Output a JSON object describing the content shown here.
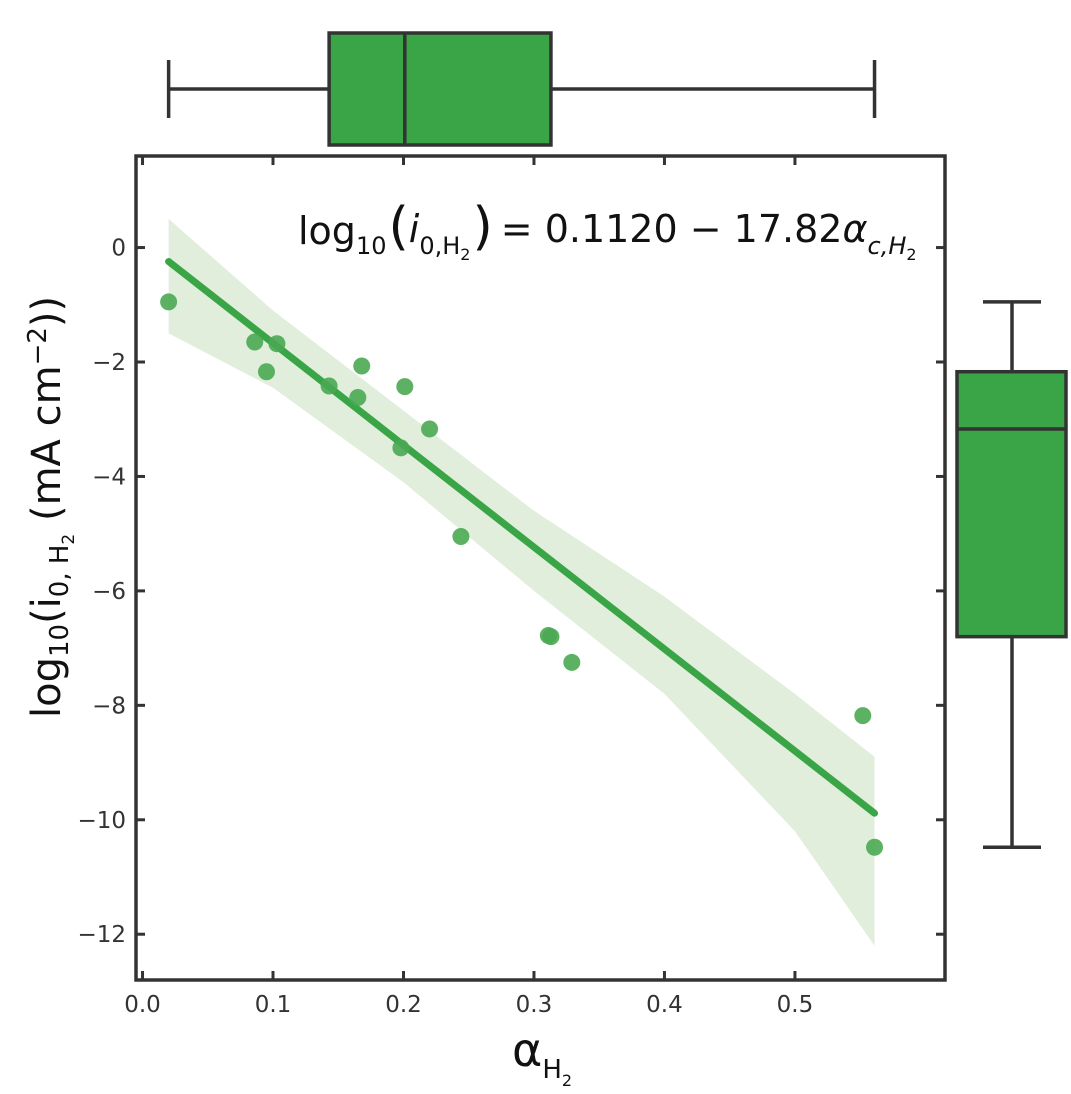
{
  "chart_data": {
    "type": "scatter",
    "equation": {
      "lhs_func": "log",
      "lhs_func_sub": "10",
      "lhs_var": "i",
      "lhs_var_sub": "0,H",
      "lhs_var_subsub": "2",
      "rhs": "= 0.1120 − 17.82",
      "rhs_var": "α",
      "rhs_var_sub": "c,H",
      "rhs_var_subsub": "2"
    },
    "xlabel": {
      "main": "α",
      "sub": "H",
      "subsub": "2"
    },
    "ylabel": {
      "pre": "log",
      "pre_sub": "10",
      "mid": "(i",
      "mid_sub": "0, H",
      "mid_subsub": "2",
      "post": " (mA cm",
      "post_sup": "−2",
      "end": "))"
    },
    "xlim": [
      -0.005,
      0.615
    ],
    "ylim": [
      -12.8,
      1.6
    ],
    "xticks": [
      0.0,
      0.1,
      0.2,
      0.3,
      0.4,
      0.5
    ],
    "xtick_labels": [
      "0.0",
      "0.1",
      "0.2",
      "0.3",
      "0.4",
      "0.5"
    ],
    "yticks": [
      0,
      -2,
      -4,
      -6,
      -8,
      -10,
      -12
    ],
    "ytick_labels": [
      "0",
      "−2",
      "−4",
      "−6",
      "−8",
      "−10",
      "−12"
    ],
    "points": [
      {
        "x": 0.02,
        "y": -0.95
      },
      {
        "x": 0.086,
        "y": -1.65
      },
      {
        "x": 0.095,
        "y": -2.17
      },
      {
        "x": 0.103,
        "y": -1.68
      },
      {
        "x": 0.143,
        "y": -2.42
      },
      {
        "x": 0.165,
        "y": -2.62
      },
      {
        "x": 0.168,
        "y": -2.07
      },
      {
        "x": 0.198,
        "y": -3.5
      },
      {
        "x": 0.201,
        "y": -2.43
      },
      {
        "x": 0.22,
        "y": -3.17
      },
      {
        "x": 0.244,
        "y": -5.05
      },
      {
        "x": 0.311,
        "y": -6.78
      },
      {
        "x": 0.313,
        "y": -6.8
      },
      {
        "x": 0.329,
        "y": -7.25
      },
      {
        "x": 0.552,
        "y": -8.18
      },
      {
        "x": 0.561,
        "y": -10.48
      }
    ],
    "regression": {
      "intercept": 0.112,
      "slope": -17.82,
      "x_range": [
        0.02,
        0.561
      ]
    },
    "confidence_band": {
      "x": [
        0.02,
        0.1,
        0.2,
        0.3,
        0.4,
        0.5,
        0.561
      ],
      "upper": [
        0.5,
        -1.1,
        -2.85,
        -4.6,
        -6.1,
        -7.8,
        -8.9
      ],
      "lower": [
        -1.5,
        -2.45,
        -4.1,
        -6.0,
        -7.8,
        -10.2,
        -12.2
      ]
    },
    "x_boxplot": {
      "whisker_low": 0.02,
      "q1": 0.143,
      "median": 0.201,
      "q3": 0.313,
      "whisker_high": 0.561
    },
    "y_boxplot": {
      "whisker_low": -10.48,
      "q1": -6.8,
      "median": -3.17,
      "q3": -2.17,
      "whisker_high": -0.95
    },
    "colors": {
      "accent": "#3aa547",
      "point": "#4aa852",
      "band": "#dcebd6",
      "frame": "#333333"
    }
  }
}
